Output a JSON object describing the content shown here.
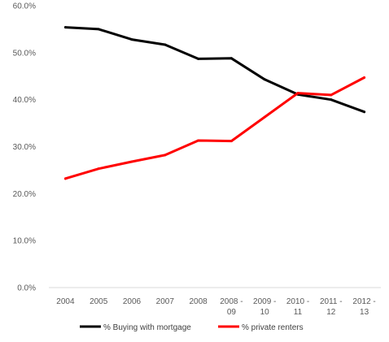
{
  "chart_data": {
    "type": "line",
    "title": "",
    "xlabel": "",
    "ylabel": "",
    "categories": [
      [
        "2004"
      ],
      [
        "2005"
      ],
      [
        "2006"
      ],
      [
        "2007"
      ],
      [
        "2008"
      ],
      [
        "2008 -",
        "09"
      ],
      [
        "2009 -",
        "10"
      ],
      [
        "2010 -",
        "11"
      ],
      [
        "2011 -",
        "12"
      ],
      [
        "2012 -",
        "13"
      ]
    ],
    "ylim": [
      0,
      60
    ],
    "yticks": [
      0,
      10,
      20,
      30,
      40,
      50,
      60
    ],
    "ytick_labels": [
      "0.0%",
      "10.0%",
      "20.0%",
      "30.0%",
      "40.0%",
      "50.0%",
      "60.0%"
    ],
    "grid": false,
    "legend_position": "bottom",
    "series": [
      {
        "name": "% Buying with mortgage",
        "color": "#000000",
        "values": [
          55.4,
          55.0,
          52.8,
          51.7,
          48.7,
          48.8,
          44.3,
          41.1,
          40.0,
          37.4
        ]
      },
      {
        "name": "% private renters",
        "color": "#ff0000",
        "values": [
          23.2,
          25.3,
          26.8,
          28.2,
          31.3,
          31.2,
          36.3,
          41.4,
          41.0,
          44.7
        ]
      }
    ]
  }
}
